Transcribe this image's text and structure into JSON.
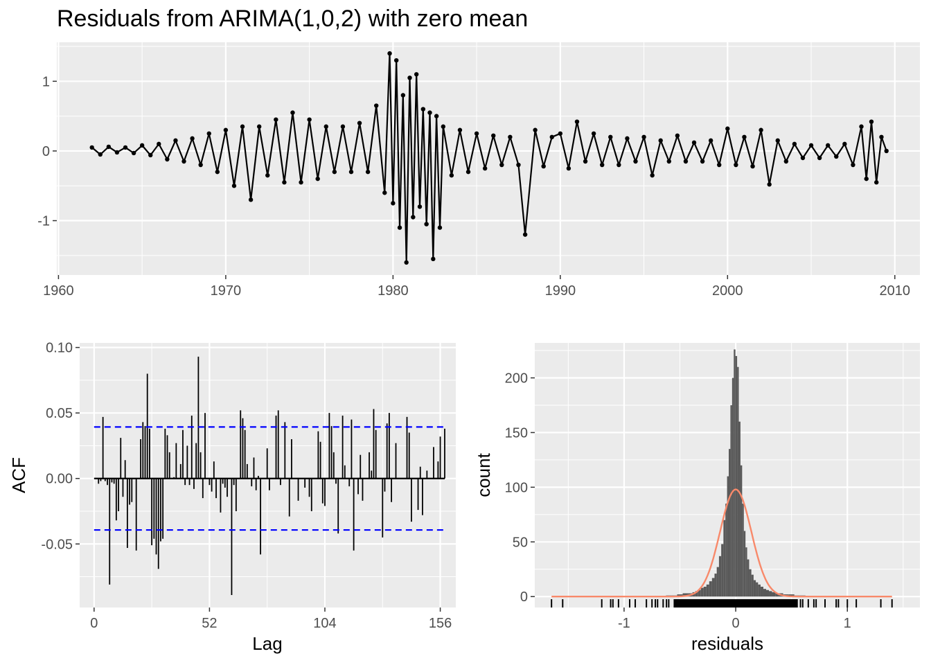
{
  "title": "Residuals from ARIMA(1,0,2) with zero mean",
  "chart_data": [
    {
      "type": "line",
      "xlabel": "",
      "ylabel": "",
      "xlim": [
        1959.9,
        2011.5
      ],
      "ylim": [
        -1.78,
        1.56
      ],
      "xticks": [
        "1960",
        "1970",
        "1980",
        "1990",
        "2000",
        "2010"
      ],
      "yticks": [
        "-1",
        "0",
        "1"
      ],
      "series": [
        {
          "x": [
            1962.0,
            1962.5,
            1963.0,
            1963.5,
            1964.0,
            1964.5,
            1965.0,
            1965.5,
            1966.0,
            1966.5,
            1967.0,
            1967.5,
            1968.0,
            1968.5,
            1969.0,
            1969.5,
            1970.0,
            1970.5,
            1971.0,
            1971.5,
            1972.0,
            1972.5,
            1973.0,
            1973.5,
            1974.0,
            1974.5,
            1975.0,
            1975.5,
            1976.0,
            1976.5,
            1977.0,
            1977.5,
            1978.0,
            1978.5,
            1979.0,
            1979.5,
            1979.8,
            1980.0,
            1980.2,
            1980.4,
            1980.6,
            1980.8,
            1981.0,
            1981.2,
            1981.4,
            1981.6,
            1981.8,
            1982.0,
            1982.2,
            1982.4,
            1982.6,
            1982.8,
            1983.0,
            1983.5,
            1984.0,
            1984.5,
            1985.0,
            1985.5,
            1986.0,
            1986.5,
            1987.0,
            1987.5,
            1987.9,
            1988.5,
            1989.0,
            1989.5,
            1990.0,
            1990.5,
            1991.0,
            1991.5,
            1992.0,
            1992.5,
            1993.0,
            1993.5,
            1994.0,
            1994.5,
            1995.0,
            1995.5,
            1996.0,
            1996.5,
            1997.0,
            1997.5,
            1998.0,
            1998.5,
            1999.0,
            1999.5,
            2000.0,
            2000.5,
            2001.0,
            2001.5,
            2002.0,
            2002.5,
            2003.0,
            2003.5,
            2004.0,
            2004.5,
            2005.0,
            2005.5,
            2006.0,
            2006.5,
            2007.0,
            2007.5,
            2008.0,
            2008.3,
            2008.6,
            2008.9,
            2009.2,
            2009.5
          ],
          "values": [
            0.05,
            -0.05,
            0.06,
            -0.02,
            0.05,
            -0.03,
            0.08,
            -0.06,
            0.1,
            -0.12,
            0.15,
            -0.15,
            0.18,
            -0.2,
            0.25,
            -0.3,
            0.3,
            -0.5,
            0.35,
            -0.7,
            0.35,
            -0.35,
            0.45,
            -0.45,
            0.55,
            -0.45,
            0.45,
            -0.4,
            0.35,
            -0.3,
            0.35,
            -0.3,
            0.4,
            -0.3,
            0.65,
            -0.6,
            1.4,
            -0.75,
            1.3,
            -1.1,
            0.8,
            -1.6,
            1.05,
            -0.95,
            1.1,
            -0.8,
            0.6,
            -1.05,
            0.55,
            -1.55,
            0.5,
            -1.1,
            0.35,
            -0.35,
            0.3,
            -0.3,
            0.25,
            -0.25,
            0.22,
            -0.2,
            0.2,
            -0.2,
            -1.2,
            0.3,
            -0.22,
            0.2,
            0.25,
            -0.25,
            0.42,
            -0.15,
            0.25,
            -0.2,
            0.2,
            -0.2,
            0.18,
            -0.15,
            0.2,
            -0.35,
            0.15,
            -0.15,
            0.22,
            -0.15,
            0.12,
            -0.15,
            0.15,
            -0.2,
            0.32,
            -0.2,
            0.2,
            -0.22,
            0.3,
            -0.48,
            0.15,
            -0.15,
            0.1,
            -0.1,
            0.08,
            -0.1,
            0.08,
            -0.08,
            0.1,
            -0.2,
            0.35,
            -0.4,
            0.42,
            -0.45,
            0.2,
            0.0
          ]
        }
      ]
    },
    {
      "type": "bar",
      "xlabel": "Lag",
      "ylabel": "ACF",
      "xlim": [
        -6.5,
        163
      ],
      "ylim": [
        -0.0985,
        0.1035
      ],
      "xticks": [
        "0",
        "52",
        "104",
        "156"
      ],
      "yticks": [
        "-0.05",
        "0.00",
        "0.05",
        "0.10"
      ],
      "confidence_band": 0.0393,
      "lags": [
        2,
        3,
        4,
        5,
        6,
        7,
        8,
        9,
        10,
        11,
        12,
        13,
        14,
        15,
        16,
        17,
        18,
        19,
        20,
        21,
        22,
        23,
        24,
        25,
        26,
        27,
        28,
        29,
        30,
        31,
        32,
        33,
        34,
        35,
        36,
        37,
        38,
        39,
        40,
        41,
        42,
        43,
        44,
        45,
        46,
        47,
        48,
        49,
        50,
        51,
        52,
        53,
        54,
        55,
        56,
        57,
        58,
        59,
        60,
        61,
        62,
        63,
        64,
        65,
        66,
        67,
        68,
        69,
        70,
        71,
        72,
        73,
        74,
        75,
        76,
        77,
        78,
        79,
        80,
        81,
        82,
        83,
        84,
        85,
        86,
        87,
        88,
        89,
        90,
        91,
        92,
        93,
        94,
        95,
        96,
        97,
        98,
        99,
        100,
        101,
        102,
        103,
        104,
        105,
        106,
        107,
        108,
        109,
        110,
        111,
        112,
        113,
        114,
        115,
        116,
        117,
        118,
        119,
        120,
        121,
        122,
        123,
        124,
        125,
        126,
        127,
        128,
        129,
        130,
        131,
        132,
        133,
        134,
        135,
        136,
        137,
        138,
        139,
        140,
        141,
        142,
        143,
        144,
        145,
        146,
        147,
        148,
        149,
        150,
        151,
        152,
        153,
        154,
        155,
        156,
        157,
        158
      ],
      "values": [
        -0.004,
        -0.002,
        0.047,
        -0.002,
        -0.005,
        -0.081,
        -0.003,
        -0.004,
        -0.032,
        -0.025,
        0.031,
        -0.014,
        0.014,
        -0.053,
        -0.02,
        -0.018,
        0.0,
        -0.055,
        0.0,
        0.03,
        0.043,
        0.04,
        0.08,
        0.038,
        -0.051,
        -0.046,
        -0.058,
        -0.069,
        -0.048,
        -0.046,
        0.038,
        0.033,
        0.02,
        0.0,
        0.001,
        0.027,
        0.0,
        0.011,
        0.037,
        -0.005,
        0.025,
        -0.005,
        0.048,
        -0.008,
        0.027,
        0.093,
        0.02,
        -0.015,
        0.05,
        0.0,
        -0.005,
        -0.01,
        0.013,
        -0.015,
        0.0,
        -0.026,
        -0.004,
        -0.007,
        -0.014,
        0.0,
        -0.089,
        -0.005,
        -0.025,
        0.0,
        0.052,
        0.046,
        0.037,
        0.011,
        0.0,
        -0.006,
        0.016,
        -0.009,
        0.002,
        -0.058,
        0.0,
        0.0,
        0.023,
        -0.009,
        0.0,
        0.0,
        0.048,
        0.052,
        -0.005,
        0.0,
        0.043,
        0.0,
        -0.029,
        0.03,
        0.0,
        0.0,
        -0.017,
        0.0,
        0.0,
        -0.007,
        0.0,
        -0.014,
        -0.025,
        0.0,
        0.0,
        0.036,
        0.028,
        -0.019,
        -0.021,
        0.0,
        0.05,
        0.04,
        0.02,
        -0.004,
        -0.042,
        0.0,
        0.048,
        0.01,
        0.0,
        -0.006,
        0.045,
        -0.055,
        0.0,
        -0.012,
        0.018,
        -0.017,
        0.0,
        0.0,
        0.02,
        0.006,
        0.053,
        0.037,
        0.0,
        0.0,
        -0.045,
        -0.01,
        0.042,
        0.05,
        -0.018,
        0.0,
        0.027,
        0.0,
        0.0,
        0.0,
        0.0,
        0.047,
        0.035,
        -0.033,
        0.0,
        0.0,
        -0.024,
        0.009,
        -0.028,
        0.0,
        0.006,
        0.0,
        0.0,
        0.024,
        0.0,
        0.013,
        0.032,
        0.0,
        0.038,
        -0.024,
        0.0,
        0.012,
        0.0
      ]
    },
    {
      "type": "bar",
      "xlabel": "residuals",
      "ylabel": "count",
      "xlim": [
        -1.8,
        1.65
      ],
      "ylim": [
        -10,
        232
      ],
      "xticks": [
        "-1",
        "0",
        "1"
      ],
      "yticks": [
        "0",
        "50",
        "100",
        "150",
        "200"
      ],
      "bin_centers": [
        -0.6,
        -0.55,
        -0.5,
        -0.45,
        -0.4,
        -0.375,
        -0.35,
        -0.325,
        -0.3,
        -0.275,
        -0.25,
        -0.225,
        -0.2,
        -0.18,
        -0.16,
        -0.14,
        -0.12,
        -0.1,
        -0.085,
        -0.07,
        -0.055,
        -0.04,
        -0.025,
        -0.01,
        0.005,
        0.02,
        0.035,
        0.05,
        0.065,
        0.08,
        0.095,
        0.11,
        0.13,
        0.15,
        0.17,
        0.19,
        0.21,
        0.235,
        0.26,
        0.285,
        0.31,
        0.34,
        0.37,
        0.4,
        0.45,
        0.5,
        0.55,
        0.6
      ],
      "counts": [
        1,
        1,
        2,
        3,
        3,
        4,
        5,
        6,
        8,
        9,
        11,
        14,
        17,
        21,
        27,
        37,
        48,
        70,
        85,
        110,
        135,
        175,
        200,
        226,
        220,
        210,
        160,
        120,
        85,
        60,
        45,
        34,
        25,
        20,
        15,
        13,
        11,
        9,
        7,
        6,
        5,
        4,
        3,
        3,
        2,
        2,
        1,
        1
      ],
      "rug": [
        -1.65,
        -1.55,
        -1.2,
        -1.12,
        -1.1,
        -1.05,
        -0.95,
        -0.9,
        -0.8,
        -0.75,
        -0.72,
        -0.7,
        -0.65,
        -0.62,
        -0.6,
        -0.55,
        -0.5,
        -0.5,
        -0.48,
        -0.45,
        -0.42,
        -0.4,
        -0.38,
        -0.35,
        -0.32,
        -0.3,
        -0.28,
        -0.25,
        -0.22,
        -0.2,
        -0.18,
        -0.15,
        -0.12,
        -0.1,
        -0.08,
        -0.05,
        -0.02,
        0.0,
        0.02,
        0.05,
        0.08,
        0.1,
        0.12,
        0.15,
        0.18,
        0.2,
        0.22,
        0.25,
        0.28,
        0.3,
        0.32,
        0.35,
        0.38,
        0.4,
        0.42,
        0.45,
        0.48,
        0.5,
        0.52,
        0.55,
        0.58,
        0.6,
        0.65,
        0.7,
        0.72,
        0.8,
        0.9,
        0.92,
        1.0,
        1.08,
        1.3,
        1.4
      ],
      "normal_curve": {
        "mean": 0.0,
        "peak": 98,
        "sd": 0.14
      },
      "colors": {
        "bars": "#595959",
        "density": "#f8896a"
      }
    }
  ],
  "colors": {
    "panel": "#ebebeb",
    "grid": "#ffffff",
    "line": "#000000",
    "ci": "#0000ff"
  }
}
